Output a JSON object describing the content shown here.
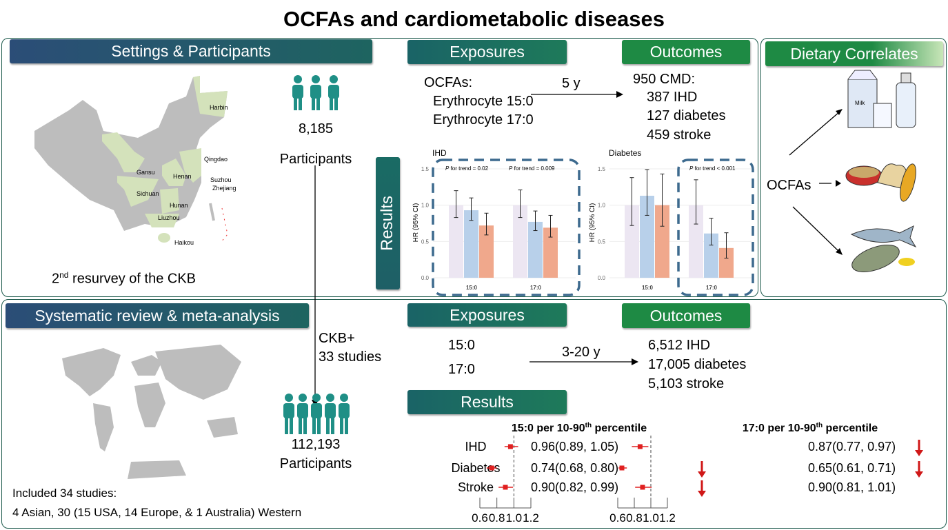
{
  "title": "OCFAs and cardiometabolic diseases",
  "colors": {
    "panel_border": "#1d5a4c",
    "header_blue": "#2b4d77",
    "header_teal": "#1a6b64",
    "header_green": "#1e8a44",
    "bar_ref": "#ece6f2",
    "bar_mid": "#b8d0ea",
    "bar_high": "#f0a88c",
    "forest_red": "#e02020"
  },
  "top": {
    "settings_header": "Settings & Participants",
    "map_labels": [
      "Harbin",
      "Qingdao",
      "Gansu",
      "Henan",
      "Suzhou",
      "Zhejiang",
      "Sichuan",
      "Hunan",
      "Liuzhou",
      "Haikou"
    ],
    "participants_count": "8,185",
    "participants_label": "Participants",
    "resurvey_pre": "2",
    "resurvey_sup": "nd",
    "resurvey_post": " resurvey of the CKB",
    "exposures_header": "Exposures",
    "outcomes_header": "Outcomes",
    "results_label": "Results",
    "exposures": [
      "OCFAs:",
      "Erythrocyte 15:0",
      "Erythrocyte 17:0"
    ],
    "followup": "5 y",
    "outcomes": [
      "950 CMD:",
      "387 IHD",
      "127 diabetes",
      "459 stroke"
    ]
  },
  "dietary": {
    "header": "Dietary Correlates",
    "ocfas_label": "OCFAs",
    "icons": [
      "milk-dairy-icon",
      "grains-corn-icon",
      "fish-icon"
    ],
    "milk_text": "Milk"
  },
  "chart_data": [
    {
      "type": "bar",
      "title": "IHD",
      "ylabel": "HR (95% CI)",
      "ylim": [
        0,
        1.5
      ],
      "yticks": [
        "0.0",
        "0.5",
        "1.0",
        "1.5"
      ],
      "categories": [
        "15:0",
        "17:0"
      ],
      "series": [
        {
          "values": [
            1.0,
            1.0
          ],
          "ci_low": [
            0.83,
            0.83
          ],
          "ci_high": [
            1.2,
            1.21
          ]
        },
        {
          "values": [
            0.93,
            0.77
          ],
          "ci_low": [
            0.79,
            0.65
          ],
          "ci_high": [
            1.1,
            0.92
          ]
        },
        {
          "values": [
            0.72,
            0.69
          ],
          "ci_low": [
            0.59,
            0.56
          ],
          "ci_high": [
            0.89,
            0.86
          ]
        }
      ],
      "annotations": [
        {
          "italic": "P",
          "text": " for trend = 0.02"
        },
        {
          "italic": "P",
          "text": " for trend = 0.009"
        }
      ]
    },
    {
      "type": "bar",
      "title": "Diabetes",
      "ylabel": "HR (95% CI)",
      "ylim": [
        0,
        1.5
      ],
      "yticks": [
        "0.0",
        "0.5",
        "1.0",
        "1.5"
      ],
      "categories": [
        "15:0",
        "17:0"
      ],
      "series": [
        {
          "values": [
            1.0,
            1.0
          ],
          "ci_low": [
            0.72,
            0.74
          ],
          "ci_high": [
            1.38,
            1.35
          ]
        },
        {
          "values": [
            1.13,
            0.61
          ],
          "ci_low": [
            0.86,
            0.45
          ],
          "ci_high": [
            1.49,
            0.82
          ]
        },
        {
          "values": [
            1.0,
            0.41
          ],
          "ci_low": [
            0.71,
            0.27
          ],
          "ci_high": [
            1.43,
            0.62
          ]
        }
      ],
      "annotations": [
        {
          "italic": "P",
          "text": " for trend < 0.001"
        }
      ]
    },
    {
      "type": "forest",
      "title_pre": "15:0 per 10-90",
      "title_sup": "th",
      "title_post": " percentile",
      "xlim": [
        0.6,
        1.2
      ],
      "xticks": [
        "0.6",
        "0.8",
        "1.0",
        "1.2"
      ],
      "reference": 1.0,
      "rows": [
        {
          "label": "IHD",
          "hr": 0.96,
          "lo": 0.89,
          "hi": 1.05,
          "text": "0.96(0.89, 1.05)",
          "down_arrow": false
        },
        {
          "label": "Diabetes",
          "hr": 0.74,
          "lo": 0.68,
          "hi": 0.8,
          "text": "0.74(0.68, 0.80)",
          "down_arrow": true
        },
        {
          "label": "Stroke",
          "hr": 0.9,
          "lo": 0.82,
          "hi": 0.99,
          "text": "0.90(0.82, 0.99)",
          "down_arrow": true
        }
      ]
    },
    {
      "type": "forest",
      "title_pre": "17:0 per 10-90",
      "title_sup": "th",
      "title_post": " percentile",
      "xlim": [
        0.6,
        1.2
      ],
      "xticks": [
        "0.6",
        "0.8",
        "1.0",
        "1.2"
      ],
      "reference": 1.0,
      "rows": [
        {
          "label": "IHD",
          "hr": 0.87,
          "lo": 0.77,
          "hi": 0.97,
          "text": "0.87(0.77, 0.97)",
          "down_arrow": true
        },
        {
          "label": "Diabetes",
          "hr": 0.65,
          "lo": 0.61,
          "hi": 0.71,
          "text": "0.65(0.61, 0.71)",
          "down_arrow": true
        },
        {
          "label": "Stroke",
          "hr": 0.9,
          "lo": 0.81,
          "hi": 1.01,
          "text": "0.90(0.81, 1.01)",
          "down_arrow": false
        }
      ]
    }
  ],
  "bottom": {
    "review_header": "Systematic review & meta-analysis",
    "ckb_plus": [
      "CKB+",
      "33 studies"
    ],
    "participants_count": "112,193",
    "participants_label": "Participants",
    "included": "Included 34 studies:",
    "breakdown": "4 Asian, 30 (15 USA, 14 Europe, & 1 Australia) Western",
    "exposures_header": "Exposures",
    "outcomes_header": "Outcomes",
    "results_header": "Results",
    "exposures": [
      "15:0",
      "17:0"
    ],
    "followup": "3-20 y",
    "outcomes": [
      "6,512 IHD",
      "17,005 diabetes",
      "5,103 stroke"
    ]
  }
}
